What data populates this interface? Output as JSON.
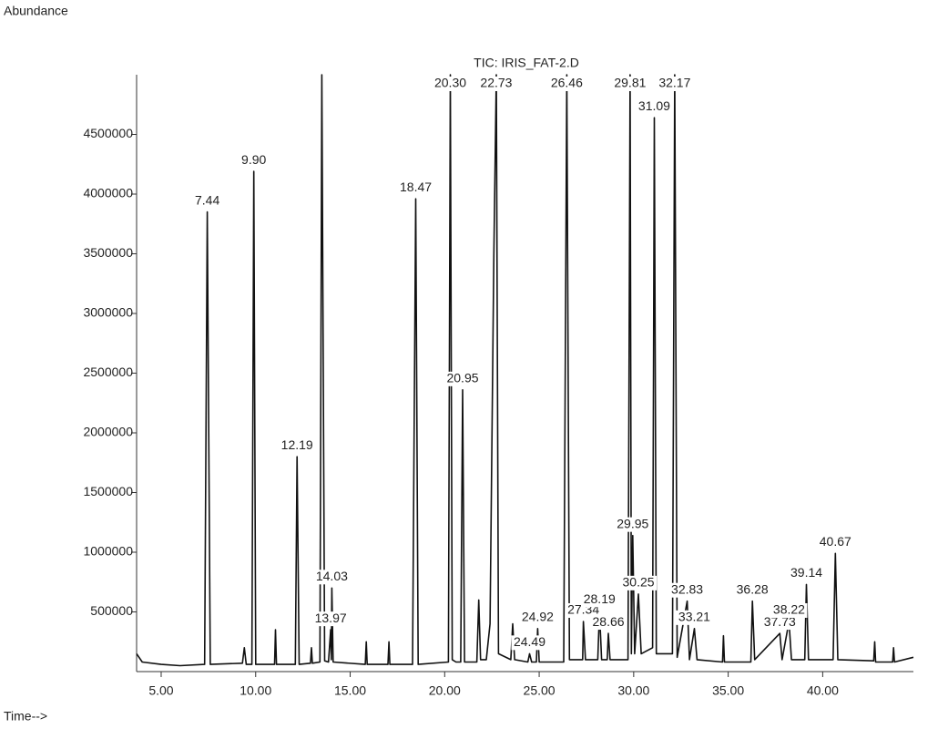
{
  "chart_data": {
    "type": "line",
    "title": "TIC: IRIS_FAT-2.D",
    "y_label": "Abundance",
    "x_label": "Time-->",
    "color": "#111111",
    "xlim": [
      3.7,
      44.8
    ],
    "ylim": [
      0,
      5000000
    ],
    "xticks": [
      {
        "value": 5,
        "label": "5.00"
      },
      {
        "value": 10,
        "label": "10.00"
      },
      {
        "value": 15,
        "label": "15.00"
      },
      {
        "value": 20,
        "label": "20.00"
      },
      {
        "value": 25,
        "label": "25.00"
      },
      {
        "value": 30,
        "label": "30.00"
      },
      {
        "value": 35,
        "label": "35.00"
      },
      {
        "value": 40,
        "label": "40.00"
      }
    ],
    "yticks": [
      500000,
      1000000,
      1500000,
      2000000,
      2500000,
      3000000,
      3500000,
      4000000,
      4500000
    ],
    "x": [
      3.7,
      4.0,
      5.0,
      6.0,
      7.3,
      7.44,
      7.6,
      9.3,
      9.4,
      9.5,
      9.8,
      9.9,
      10.0,
      11.0,
      11.05,
      11.1,
      12.1,
      12.19,
      12.3,
      12.9,
      12.95,
      13.0,
      13.4,
      13.5,
      13.65,
      13.85,
      13.97,
      14.0,
      14.03,
      14.1,
      15.8,
      15.85,
      15.9,
      17.0,
      17.05,
      17.1,
      18.3,
      18.47,
      18.6,
      20.2,
      20.3,
      20.4,
      20.6,
      20.85,
      20.95,
      21.05,
      21.7,
      21.8,
      21.9,
      22.2,
      22.4,
      22.6,
      22.73,
      22.85,
      23.5,
      23.6,
      23.7,
      24.4,
      24.49,
      24.6,
      24.85,
      24.92,
      25.0,
      26.3,
      26.46,
      26.6,
      27.3,
      27.34,
      27.45,
      28.1,
      28.19,
      28.3,
      28.6,
      28.66,
      28.75,
      29.7,
      29.81,
      29.88,
      29.95,
      30.05,
      30.25,
      30.4,
      31.0,
      31.09,
      31.2,
      31.5,
      32.05,
      32.17,
      32.3,
      32.83,
      32.95,
      33.21,
      33.35,
      34.7,
      34.75,
      34.8,
      36.2,
      36.28,
      36.4,
      37.73,
      37.85,
      38.22,
      38.35,
      39.05,
      39.14,
      39.25,
      40.55,
      40.67,
      40.8,
      42.7,
      42.75,
      42.8,
      43.7,
      43.75,
      43.8,
      44.8
    ],
    "series": [
      {
        "name": "TIC",
        "values": [
          150000,
          80000,
          60000,
          50000,
          60000,
          3850000,
          60000,
          70000,
          200000,
          60000,
          60000,
          4190000,
          60000,
          60000,
          350000,
          60000,
          60000,
          1800000,
          60000,
          70000,
          200000,
          70000,
          80000,
          5000000,
          90000,
          80000,
          350000,
          100000,
          700000,
          80000,
          60000,
          250000,
          60000,
          60000,
          250000,
          60000,
          60000,
          3960000,
          60000,
          80000,
          5000000,
          100000,
          80000,
          80000,
          2360000,
          80000,
          80000,
          600000,
          100000,
          100000,
          400000,
          3500000,
          5000000,
          150000,
          100000,
          400000,
          100000,
          80000,
          150000,
          80000,
          80000,
          360000,
          80000,
          80000,
          5000000,
          100000,
          100000,
          420000,
          100000,
          100000,
          510000,
          100000,
          100000,
          320000,
          100000,
          100000,
          5000000,
          150000,
          1140000,
          150000,
          650000,
          150000,
          200000,
          4640000,
          150000,
          150000,
          150000,
          5000000,
          120000,
          590000,
          100000,
          360000,
          100000,
          80000,
          300000,
          80000,
          80000,
          590000,
          100000,
          320000,
          100000,
          420000,
          100000,
          100000,
          730000,
          100000,
          100000,
          990000,
          100000,
          90000,
          250000,
          80000,
          80000,
          200000,
          80000,
          120000
        ]
      }
    ],
    "annotations": [
      {
        "label": "7.44",
        "x": 7.44,
        "y": 3850000
      },
      {
        "label": "9.90",
        "x": 9.9,
        "y": 4190000
      },
      {
        "label": "12.19",
        "x": 12.19,
        "y": 1800000
      },
      {
        "label": "14.03",
        "x": 14.03,
        "y": 700000
      },
      {
        "label": "13.97",
        "x": 13.97,
        "y": 350000
      },
      {
        "label": "18.47",
        "x": 18.47,
        "y": 3960000
      },
      {
        "label": "20.30",
        "x": 20.3,
        "y": 5000000
      },
      {
        "label": "20.95",
        "x": 20.95,
        "y": 2360000
      },
      {
        "label": "22.73",
        "x": 22.73,
        "y": 5000000
      },
      {
        "label": "24.92",
        "x": 24.92,
        "y": 360000
      },
      {
        "label": "24.49",
        "x": 24.49,
        "y": 150000
      },
      {
        "label": "26.46",
        "x": 26.46,
        "y": 5000000
      },
      {
        "label": "27.34",
        "x": 27.34,
        "y": 420000
      },
      {
        "label": "28.19",
        "x": 28.19,
        "y": 510000
      },
      {
        "label": "28.66",
        "x": 28.66,
        "y": 320000
      },
      {
        "label": "29.81",
        "x": 29.81,
        "y": 5000000
      },
      {
        "label": "29.95",
        "x": 29.95,
        "y": 1140000
      },
      {
        "label": "30.25",
        "x": 30.25,
        "y": 650000
      },
      {
        "label": "31.09",
        "x": 31.09,
        "y": 4640000
      },
      {
        "label": "32.17",
        "x": 32.17,
        "y": 5000000
      },
      {
        "label": "32.83",
        "x": 32.83,
        "y": 590000
      },
      {
        "label": "33.21",
        "x": 33.21,
        "y": 360000
      },
      {
        "label": "36.28",
        "x": 36.28,
        "y": 590000
      },
      {
        "label": "37.73",
        "x": 37.73,
        "y": 320000
      },
      {
        "label": "38.22",
        "x": 38.22,
        "y": 420000
      },
      {
        "label": "39.14",
        "x": 39.14,
        "y": 730000
      },
      {
        "label": "40.67",
        "x": 40.67,
        "y": 990000
      }
    ]
  }
}
